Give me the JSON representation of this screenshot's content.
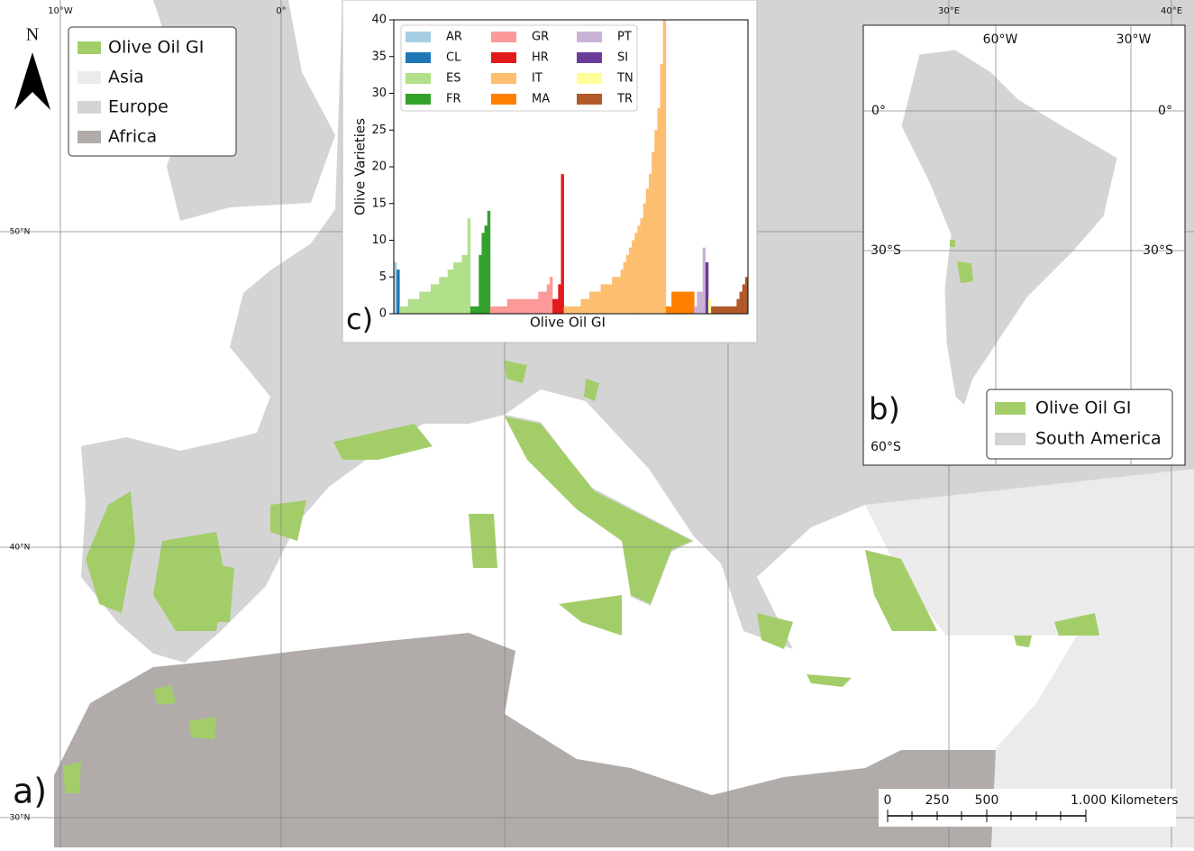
{
  "map": {
    "lon_labels": [
      "10°W",
      "0°",
      "30°E",
      "40°E"
    ],
    "lat_labels": [
      "50°N",
      "40°N",
      "30°N"
    ],
    "north": "N",
    "panel": "a)",
    "legend": [
      {
        "label": "Olive Oil GI",
        "color": "#a3cd69"
      },
      {
        "label": "Asia",
        "color": "#ebebeb"
      },
      {
        "label": "Europe",
        "color": "#d4d4d4"
      },
      {
        "label": "Africa",
        "color": "#b1acaa"
      }
    ],
    "scale_bar": [
      "0",
      "250",
      "500",
      "1.000 Kilometers"
    ]
  },
  "inset_b": {
    "panel": "b)",
    "lon_labels": [
      "60°W",
      "30°W"
    ],
    "lat_labels": [
      "0°",
      "0°",
      "30°S",
      "30°S",
      "60°S"
    ],
    "legend": [
      {
        "label": "Olive Oil GI",
        "color": "#a3cd69"
      },
      {
        "label": "South America",
        "color": "#d4d4d4"
      }
    ]
  },
  "chart_data": {
    "type": "bar",
    "panel": "c)",
    "x_label": "Olive Oil GI",
    "y_label": "Olive Varieties",
    "ylim": [
      0,
      40
    ],
    "yticks": [
      0,
      5,
      10,
      15,
      20,
      25,
      30,
      35,
      40
    ],
    "series": [
      {
        "name": "AR",
        "color": "#a6cee3",
        "values": [
          7
        ]
      },
      {
        "name": "CL",
        "color": "#1f78b4",
        "values": [
          6
        ]
      },
      {
        "name": "ES",
        "color": "#b2df8a",
        "values": [
          1,
          1,
          1,
          2,
          2,
          2,
          2,
          3,
          3,
          3,
          3,
          4,
          4,
          4,
          5,
          5,
          5,
          6,
          6,
          7,
          7,
          7,
          8,
          8,
          13
        ]
      },
      {
        "name": "FR",
        "color": "#33a02c",
        "values": [
          1,
          1,
          1,
          8,
          11,
          12,
          14
        ]
      },
      {
        "name": "GR",
        "color": "#fb9a99",
        "values": [
          1,
          1,
          1,
          1,
          1,
          1,
          2,
          2,
          2,
          2,
          2,
          2,
          2,
          2,
          2,
          2,
          2,
          3,
          3,
          3,
          4,
          5
        ]
      },
      {
        "name": "HR",
        "color": "#e31a1c",
        "values": [
          2,
          2,
          4,
          19
        ]
      },
      {
        "name": "IT",
        "color": "#fdbf6f",
        "values": [
          1,
          1,
          1,
          1,
          1,
          1,
          2,
          2,
          2,
          3,
          3,
          3,
          3,
          4,
          4,
          4,
          4,
          5,
          5,
          5,
          6,
          7,
          8,
          9,
          10,
          11,
          12,
          13,
          15,
          17,
          19,
          22,
          25,
          28,
          34,
          40
        ]
      },
      {
        "name": "MA",
        "color": "#ff7f00",
        "values": [
          1,
          1,
          3,
          3,
          3,
          3,
          3,
          3,
          3,
          3
        ]
      },
      {
        "name": "PT",
        "color": "#cab2d6",
        "values": [
          1,
          3,
          3,
          9
        ]
      },
      {
        "name": "SI",
        "color": "#6a3d9a",
        "values": [
          7
        ]
      },
      {
        "name": "TN",
        "color": "#ffff99",
        "values": [
          2
        ]
      },
      {
        "name": "TR",
        "color": "#b15928",
        "values": [
          1,
          1,
          1,
          1,
          1,
          1,
          1,
          1,
          1,
          2,
          3,
          4,
          5
        ]
      }
    ]
  }
}
